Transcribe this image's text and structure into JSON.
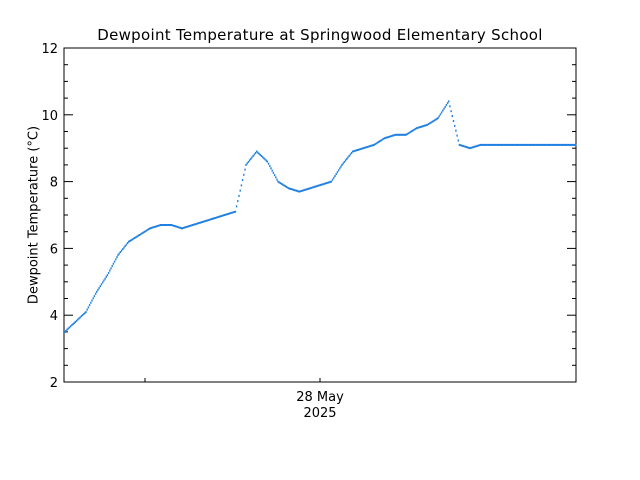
{
  "chart_data": {
    "type": "scatter",
    "title": "Dewpoint Temperature at Springwood Elementary School",
    "ylabel": "Dewpoint Temperature (°C)",
    "xlabel": "",
    "ylim": [
      2,
      12
    ],
    "yticks": [
      2,
      4,
      6,
      8,
      10,
      12
    ],
    "xlim": [
      "2025-05-27 00:00",
      "2025-05-28 00:00"
    ],
    "xtick_label": {
      "line1": "28 May",
      "line2": "2025"
    },
    "grid": false,
    "color": "#1f7fe0",
    "x_hours": [
      0,
      0.5,
      1,
      1.5,
      2,
      2.5,
      3,
      3.5,
      4,
      4.5,
      5,
      5.5,
      6,
      6.5,
      7,
      7.5,
      8,
      8.5,
      9,
      9.5,
      10,
      10.5,
      11,
      11.5,
      12,
      12.5,
      13,
      13.5,
      14,
      14.5,
      15,
      15.5,
      16,
      16.5,
      17,
      17.5,
      18,
      18.5,
      19,
      19.5,
      20,
      20.5,
      21,
      21.5,
      22,
      22.5,
      23,
      23.5,
      24
    ],
    "values": [
      3.5,
      3.8,
      4.1,
      4.7,
      5.2,
      5.8,
      6.2,
      6.4,
      6.6,
      6.7,
      6.7,
      6.6,
      6.7,
      6.8,
      6.9,
      7.0,
      7.1,
      8.5,
      8.9,
      8.6,
      8.0,
      7.8,
      7.7,
      7.8,
      7.9,
      8.0,
      8.5,
      8.9,
      9.0,
      9.1,
      9.3,
      9.4,
      9.4,
      9.6,
      9.7,
      9.9,
      10.4,
      9.1,
      9.0,
      9.1,
      9.1,
      9.1,
      9.1,
      9.1,
      9.1,
      9.1,
      9.1,
      9.1,
      9.1
    ]
  }
}
